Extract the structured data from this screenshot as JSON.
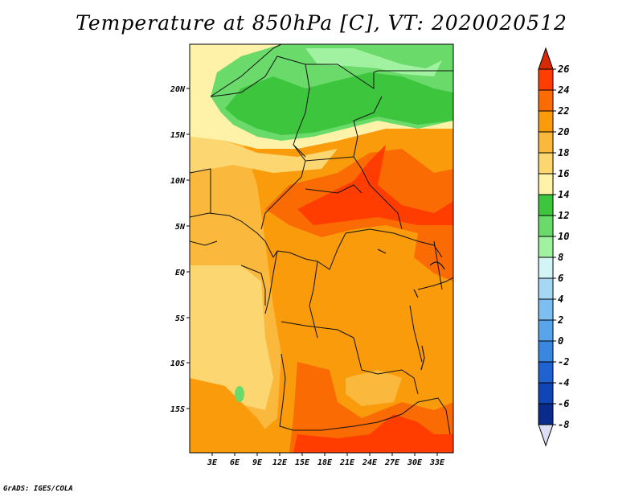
{
  "title": "Temperature at 850hPa [C], VT: 2020020512",
  "credit": "GrADS: IGES/COLA",
  "map": {
    "lon_labels": [
      "3E",
      "6E",
      "9E",
      "12E",
      "15E",
      "18E",
      "21E",
      "24E",
      "27E",
      "30E",
      "33E"
    ],
    "lat_labels": [
      "20N",
      "15N",
      "10N",
      "5N",
      "EQ",
      "5S",
      "10S",
      "15S"
    ]
  },
  "colorbar": {
    "labels": [
      "26",
      "24",
      "22",
      "20",
      "18",
      "16",
      "14",
      "12",
      "10",
      "8",
      "6",
      "4",
      "2",
      "0",
      "-2",
      "-4",
      "-6",
      "-8"
    ],
    "colors": {
      "gt26": "#d42a05",
      "24-26": "#ff3d00",
      "22-24": "#fb6b03",
      "20-22": "#f99b0b",
      "18-20": "#fab83c",
      "16-18": "#fcd771",
      "14-16": "#fef2a8",
      "12-14": "#3dc63d",
      "10-12": "#6ada6a",
      "8-10": "#a0f2a0",
      "6-8": "#d4f5f5",
      "4-6": "#a6d8f5",
      "2-4": "#7dbff0",
      "0-2": "#58a5ec",
      "-2-0": "#3a87e0",
      "-4--2": "#1f62d0",
      "-6--4": "#0f45b4",
      "-8--6": "#0a2a8c",
      "lt-8": "#0a0a64"
    }
  }
}
